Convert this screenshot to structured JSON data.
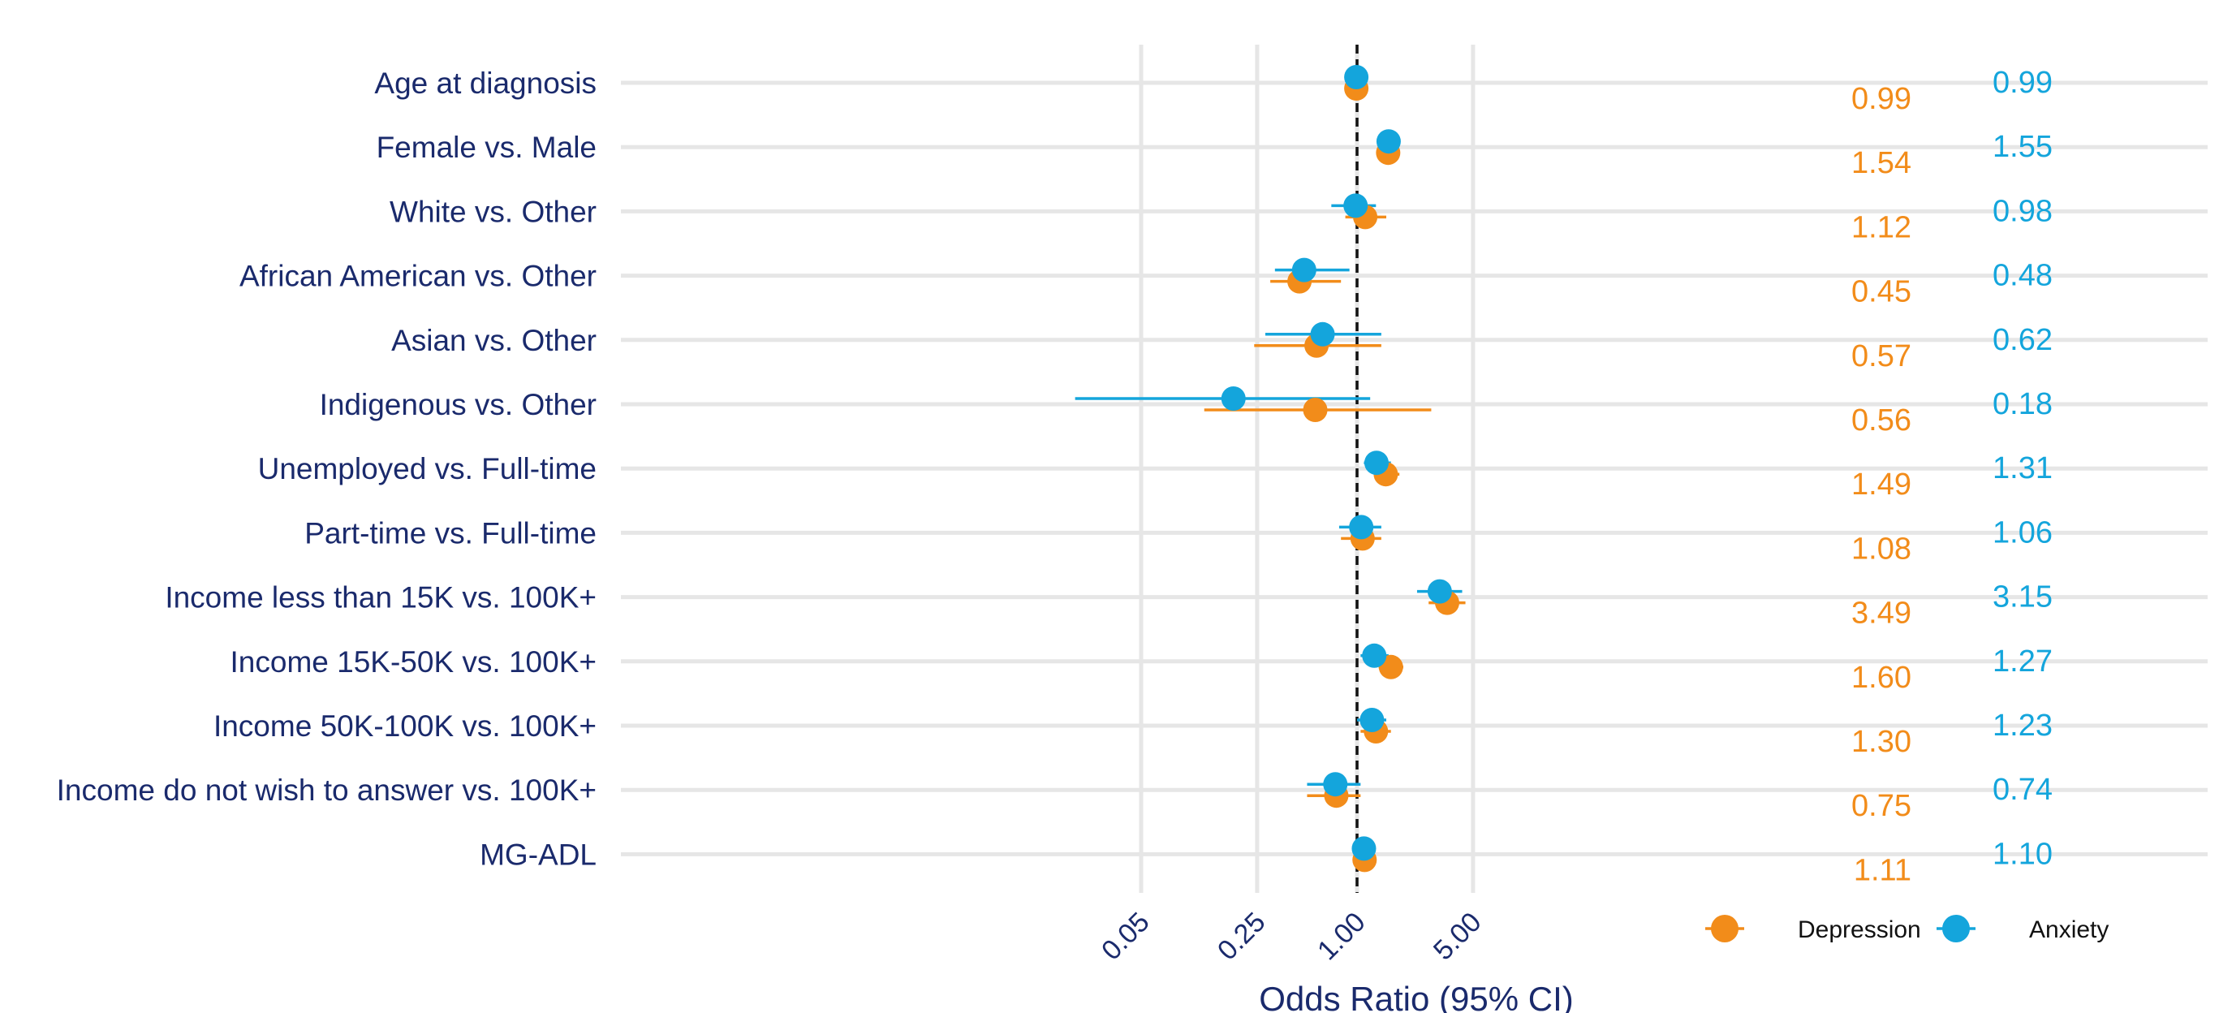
{
  "chart_data": {
    "type": "forest",
    "title": "",
    "xlabel": "Odds Ratio (95% CI)",
    "x_scale": "log",
    "x_ticks": [
      0.05,
      0.25,
      1.0,
      5.0
    ],
    "x_tick_labels": [
      "0.05",
      "0.25",
      "1.00",
      "5.00"
    ],
    "reference_line": 1.0,
    "xlim": [
      0.0055,
      10
    ],
    "grid": true,
    "legend_position": "bottom-right",
    "categories": [
      "Age at diagnosis",
      "Female vs. Male",
      "White vs. Other",
      "African American vs. Other",
      "Asian vs. Other",
      "Indigenous vs. Other",
      "Unemployed vs. Full-time",
      "Part-time vs. Full-time",
      "Income less than 15K vs. 100K+",
      "Income 15K-50K vs. 100K+",
      "Income 50K-100K vs. 100K+",
      "Income do not wish to answer vs. 100K+",
      "MG-ADL"
    ],
    "series": [
      {
        "name": "Depression",
        "color": "#f28c1a",
        "or_labels": [
          "0.99",
          "1.54",
          "1.12",
          "0.45",
          "0.57",
          "0.56",
          "1.49",
          "1.08",
          "3.49",
          "1.60",
          "1.30",
          "0.75",
          "1.11"
        ],
        "values": [
          0.99,
          1.54,
          1.12,
          0.45,
          0.57,
          0.56,
          1.49,
          1.08,
          3.49,
          1.6,
          1.3,
          0.75,
          1.11
        ],
        "ci_low": [
          0.98,
          1.35,
          0.85,
          0.3,
          0.24,
          0.12,
          1.3,
          0.8,
          2.7,
          1.35,
          1.05,
          0.5,
          1.06
        ],
        "ci_high": [
          1.0,
          1.8,
          1.5,
          0.8,
          1.4,
          2.8,
          1.8,
          1.4,
          4.5,
          1.9,
          1.6,
          1.05,
          1.16
        ]
      },
      {
        "name": "Anxiety",
        "color": "#14a5dc",
        "or_labels": [
          "0.99",
          "1.55",
          "0.98",
          "0.48",
          "0.62",
          "0.18",
          "1.31",
          "1.06",
          "3.15",
          "1.27",
          "1.23",
          "0.74",
          "1.10"
        ],
        "values": [
          0.99,
          1.55,
          0.98,
          0.48,
          0.62,
          0.18,
          1.31,
          1.06,
          3.15,
          1.27,
          1.23,
          0.74,
          1.1
        ],
        "ci_low": [
          0.98,
          1.35,
          0.7,
          0.32,
          0.28,
          0.02,
          1.1,
          0.78,
          2.3,
          1.05,
          1.0,
          0.5,
          1.05
        ],
        "ci_high": [
          1.0,
          1.8,
          1.3,
          0.9,
          1.4,
          1.2,
          1.6,
          1.4,
          4.3,
          1.55,
          1.5,
          1.05,
          1.15
        ]
      }
    ]
  }
}
